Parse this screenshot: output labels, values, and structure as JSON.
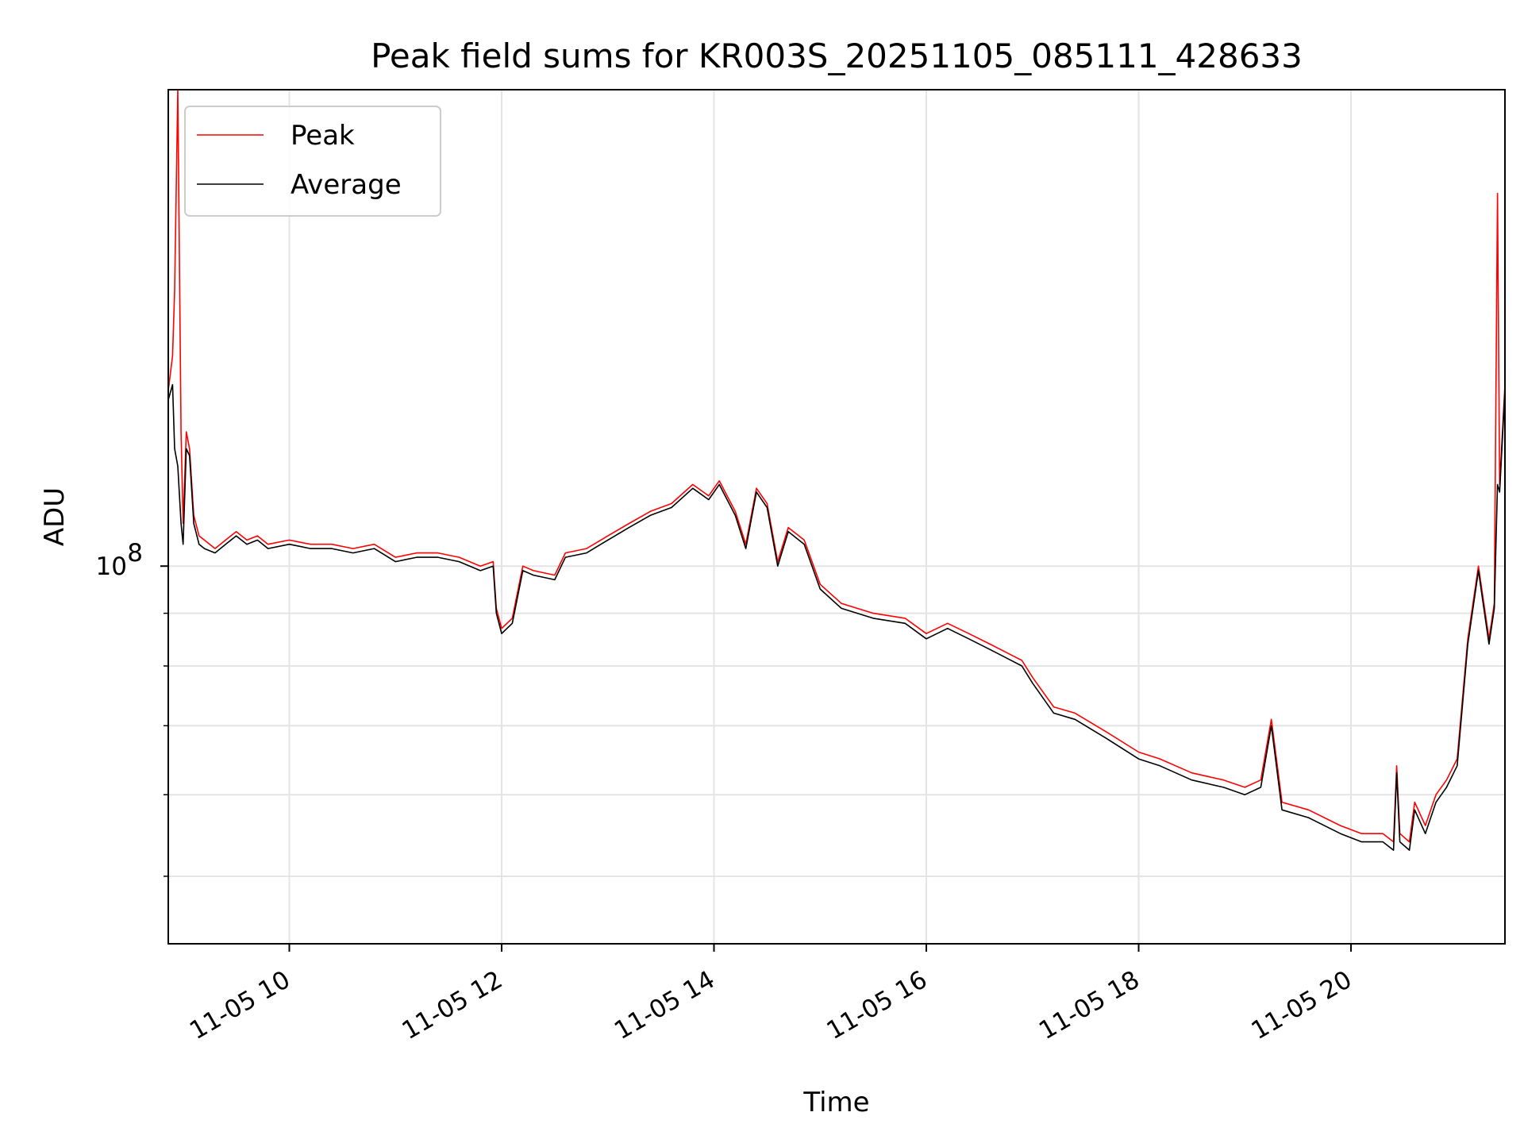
{
  "chart_data": {
    "type": "line",
    "title": "Peak field sums for KR003S_20251105_085111_428633",
    "xlabel": "Time",
    "ylabel": "ADU",
    "x_unit": "hours of day, 2025-11-05",
    "xlim": [
      8.86,
      21.45
    ],
    "y_scale": "log",
    "ylim": [
      43000000,
      290000000
    ],
    "grid": true,
    "legend_placement": "upper-left",
    "x_ticks": [
      {
        "value": 10,
        "label": "11-05 10"
      },
      {
        "value": 12,
        "label": "11-05 12"
      },
      {
        "value": 14,
        "label": "11-05 14"
      },
      {
        "value": 16,
        "label": "11-05 16"
      },
      {
        "value": 18,
        "label": "11-05 18"
      },
      {
        "value": 20,
        "label": "11-05 20"
      }
    ],
    "y_major_ticks": [
      {
        "value": 100000000,
        "base": "10",
        "exp": "8"
      }
    ],
    "y_minor_ticks": [
      50000000,
      60000000,
      70000000,
      80000000,
      90000000
    ],
    "series": [
      {
        "name": "Peak",
        "color": "#ff0000",
        "points": [
          [
            8.86,
            148000000
          ],
          [
            8.9,
            160000000
          ],
          [
            8.92,
            185000000
          ],
          [
            8.95,
            290000000
          ],
          [
            8.98,
            135000000
          ],
          [
            9.0,
            110000000
          ],
          [
            9.03,
            135000000
          ],
          [
            9.06,
            130000000
          ],
          [
            9.1,
            112000000
          ],
          [
            9.15,
            107000000
          ],
          [
            9.2,
            106000000
          ],
          [
            9.3,
            104000000
          ],
          [
            9.4,
            106000000
          ],
          [
            9.5,
            108000000
          ],
          [
            9.6,
            106000000
          ],
          [
            9.7,
            107000000
          ],
          [
            9.8,
            105000000
          ],
          [
            10.0,
            106000000
          ],
          [
            10.2,
            105000000
          ],
          [
            10.4,
            105000000
          ],
          [
            10.6,
            104000000
          ],
          [
            10.8,
            105000000
          ],
          [
            11.0,
            102000000
          ],
          [
            11.2,
            103000000
          ],
          [
            11.4,
            103000000
          ],
          [
            11.6,
            102000000
          ],
          [
            11.8,
            100000000
          ],
          [
            11.92,
            101000000
          ],
          [
            11.95,
            91000000
          ],
          [
            12.0,
            87000000
          ],
          [
            12.1,
            89000000
          ],
          [
            12.2,
            100000000
          ],
          [
            12.3,
            99000000
          ],
          [
            12.5,
            98000000
          ],
          [
            12.6,
            103000000
          ],
          [
            12.8,
            104000000
          ],
          [
            13.0,
            107000000
          ],
          [
            13.2,
            110000000
          ],
          [
            13.4,
            113000000
          ],
          [
            13.6,
            115000000
          ],
          [
            13.8,
            120000000
          ],
          [
            13.95,
            117000000
          ],
          [
            14.05,
            121000000
          ],
          [
            14.2,
            113000000
          ],
          [
            14.3,
            105000000
          ],
          [
            14.4,
            119000000
          ],
          [
            14.5,
            115000000
          ],
          [
            14.6,
            101000000
          ],
          [
            14.7,
            109000000
          ],
          [
            14.85,
            106000000
          ],
          [
            15.0,
            96000000
          ],
          [
            15.2,
            92000000
          ],
          [
            15.5,
            90000000
          ],
          [
            15.8,
            89000000
          ],
          [
            16.0,
            86000000
          ],
          [
            16.2,
            88000000
          ],
          [
            16.4,
            86000000
          ],
          [
            16.6,
            84000000
          ],
          [
            16.9,
            81000000
          ],
          [
            17.0,
            78000000
          ],
          [
            17.2,
            73000000
          ],
          [
            17.4,
            72000000
          ],
          [
            17.7,
            69000000
          ],
          [
            18.0,
            66000000
          ],
          [
            18.2,
            65000000
          ],
          [
            18.5,
            63000000
          ],
          [
            18.8,
            62000000
          ],
          [
            19.0,
            61000000
          ],
          [
            19.15,
            62000000
          ],
          [
            19.25,
            71000000
          ],
          [
            19.35,
            59000000
          ],
          [
            19.6,
            58000000
          ],
          [
            19.9,
            56000000
          ],
          [
            20.1,
            55000000
          ],
          [
            20.3,
            55000000
          ],
          [
            20.4,
            54000000
          ],
          [
            20.43,
            64000000
          ],
          [
            20.46,
            55000000
          ],
          [
            20.55,
            54000000
          ],
          [
            20.6,
            59000000
          ],
          [
            20.7,
            56000000
          ],
          [
            20.8,
            60000000
          ],
          [
            20.9,
            62000000
          ],
          [
            21.0,
            65000000
          ],
          [
            21.1,
            85000000
          ],
          [
            21.2,
            100000000
          ],
          [
            21.3,
            85000000
          ],
          [
            21.35,
            92000000
          ],
          [
            21.38,
            230000000
          ],
          [
            21.4,
            120000000
          ],
          [
            21.45,
            150000000
          ]
        ]
      },
      {
        "name": "Average",
        "color": "#000000",
        "points": [
          [
            8.86,
            145000000
          ],
          [
            8.9,
            150000000
          ],
          [
            8.92,
            130000000
          ],
          [
            8.95,
            125000000
          ],
          [
            8.98,
            110000000
          ],
          [
            9.0,
            105000000
          ],
          [
            9.03,
            130000000
          ],
          [
            9.06,
            128000000
          ],
          [
            9.1,
            110000000
          ],
          [
            9.15,
            105000000
          ],
          [
            9.2,
            104000000
          ],
          [
            9.3,
            103000000
          ],
          [
            9.4,
            105000000
          ],
          [
            9.5,
            107000000
          ],
          [
            9.6,
            105000000
          ],
          [
            9.7,
            106000000
          ],
          [
            9.8,
            104000000
          ],
          [
            10.0,
            105000000
          ],
          [
            10.2,
            104000000
          ],
          [
            10.4,
            104000000
          ],
          [
            10.6,
            103000000
          ],
          [
            10.8,
            104000000
          ],
          [
            11.0,
            101000000
          ],
          [
            11.2,
            102000000
          ],
          [
            11.4,
            102000000
          ],
          [
            11.6,
            101000000
          ],
          [
            11.8,
            99000000
          ],
          [
            11.92,
            100000000
          ],
          [
            11.95,
            90000000
          ],
          [
            12.0,
            86000000
          ],
          [
            12.1,
            88000000
          ],
          [
            12.2,
            99000000
          ],
          [
            12.3,
            98000000
          ],
          [
            12.5,
            97000000
          ],
          [
            12.6,
            102000000
          ],
          [
            12.8,
            103000000
          ],
          [
            13.0,
            106000000
          ],
          [
            13.2,
            109000000
          ],
          [
            13.4,
            112000000
          ],
          [
            13.6,
            114000000
          ],
          [
            13.8,
            119000000
          ],
          [
            13.95,
            116000000
          ],
          [
            14.05,
            120000000
          ],
          [
            14.2,
            112000000
          ],
          [
            14.3,
            104000000
          ],
          [
            14.4,
            118000000
          ],
          [
            14.5,
            114000000
          ],
          [
            14.6,
            100000000
          ],
          [
            14.7,
            108000000
          ],
          [
            14.85,
            105000000
          ],
          [
            15.0,
            95000000
          ],
          [
            15.2,
            91000000
          ],
          [
            15.5,
            89000000
          ],
          [
            15.8,
            88000000
          ],
          [
            16.0,
            85000000
          ],
          [
            16.2,
            87000000
          ],
          [
            16.4,
            85000000
          ],
          [
            16.6,
            83000000
          ],
          [
            16.9,
            80000000
          ],
          [
            17.0,
            77000000
          ],
          [
            17.2,
            72000000
          ],
          [
            17.4,
            71000000
          ],
          [
            17.7,
            68000000
          ],
          [
            18.0,
            65000000
          ],
          [
            18.2,
            64000000
          ],
          [
            18.5,
            62000000
          ],
          [
            18.8,
            61000000
          ],
          [
            19.0,
            60000000
          ],
          [
            19.15,
            61000000
          ],
          [
            19.25,
            70000000
          ],
          [
            19.35,
            58000000
          ],
          [
            19.6,
            57000000
          ],
          [
            19.9,
            55000000
          ],
          [
            20.1,
            54000000
          ],
          [
            20.3,
            54000000
          ],
          [
            20.4,
            53000000
          ],
          [
            20.43,
            63000000
          ],
          [
            20.46,
            54000000
          ],
          [
            20.55,
            53000000
          ],
          [
            20.6,
            58000000
          ],
          [
            20.7,
            55000000
          ],
          [
            20.8,
            59000000
          ],
          [
            20.9,
            61000000
          ],
          [
            21.0,
            64000000
          ],
          [
            21.1,
            84000000
          ],
          [
            21.2,
            99000000
          ],
          [
            21.3,
            84000000
          ],
          [
            21.35,
            91000000
          ],
          [
            21.38,
            120000000
          ],
          [
            21.4,
            118000000
          ],
          [
            21.45,
            148000000
          ]
        ]
      }
    ]
  }
}
